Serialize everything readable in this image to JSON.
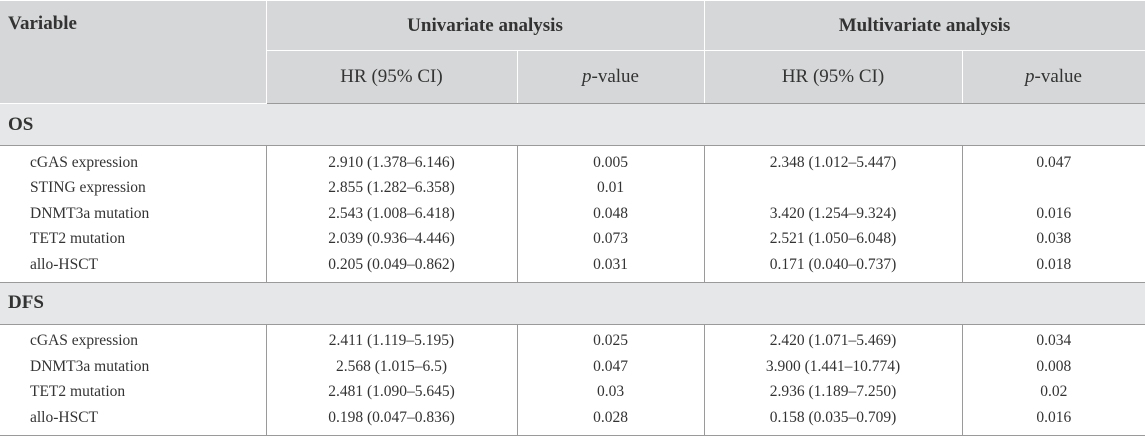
{
  "header": {
    "variable": "Variable",
    "univariate": "Univariate analysis",
    "multivariate": "Multivariate analysis",
    "hr_ci": "HR (95% CI)",
    "p_value_italic": "p",
    "p_value_rest": "-value"
  },
  "sections": [
    {
      "title": "OS",
      "rows": [
        {
          "variable": "cGAS expression",
          "uni_hr": "2.910 (1.378–6.146)",
          "uni_p": "0.005",
          "multi_hr": "2.348 (1.012–5.447)",
          "multi_p": "0.047"
        },
        {
          "variable": "STING expression",
          "uni_hr": "2.855 (1.282–6.358)",
          "uni_p": "0.01",
          "multi_hr": "",
          "multi_p": ""
        },
        {
          "variable": "DNMT3a mutation",
          "uni_hr": "2.543 (1.008–6.418)",
          "uni_p": "0.048",
          "multi_hr": "3.420 (1.254–9.324)",
          "multi_p": "0.016"
        },
        {
          "variable": "TET2 mutation",
          "uni_hr": "2.039 (0.936–4.446)",
          "uni_p": "0.073",
          "multi_hr": "2.521 (1.050–6.048)",
          "multi_p": "0.038"
        },
        {
          "variable": "allo-HSCT",
          "uni_hr": "0.205 (0.049–0.862)",
          "uni_p": "0.031",
          "multi_hr": "0.171 (0.040–0.737)",
          "multi_p": "0.018"
        }
      ]
    },
    {
      "title": "DFS",
      "rows": [
        {
          "variable": "cGAS expression",
          "uni_hr": "2.411 (1.119–5.195)",
          "uni_p": "0.025",
          "multi_hr": "2.420 (1.071–5.469)",
          "multi_p": "0.034"
        },
        {
          "variable": "DNMT3a mutation",
          "uni_hr": "2.568 (1.015–6.5)",
          "uni_p": "0.047",
          "multi_hr": "3.900 (1.441–10.774)",
          "multi_p": "0.008"
        },
        {
          "variable": "TET2 mutation",
          "uni_hr": "2.481 (1.090–5.645)",
          "uni_p": "0.03",
          "multi_hr": "2.936 (1.189–7.250)",
          "multi_p": "0.02"
        },
        {
          "variable": "allo-HSCT",
          "uni_hr": "0.198 (0.047–0.836)",
          "uni_p": "0.028",
          "multi_hr": "0.158 (0.035–0.709)",
          "multi_p": "0.016"
        }
      ]
    }
  ]
}
